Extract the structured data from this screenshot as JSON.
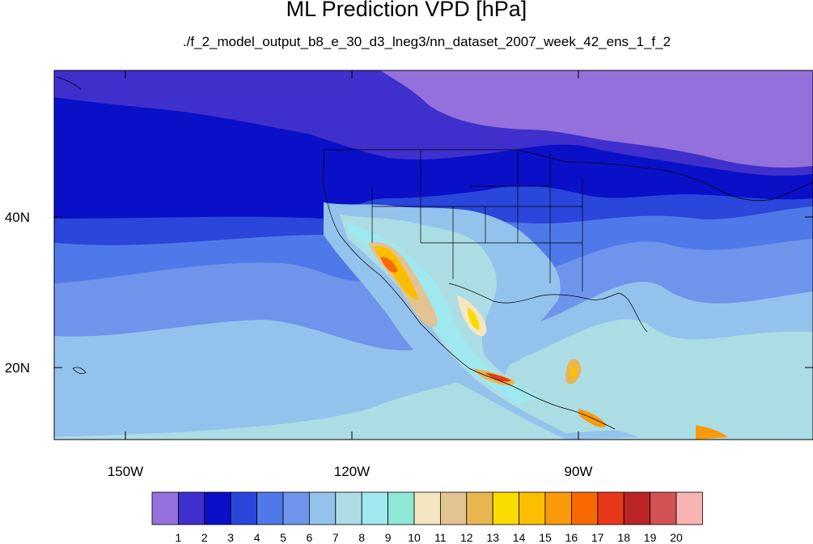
{
  "title": "ML Prediction VPD [hPa]",
  "subtitle": "./f_2_model_output_b8_e_30_d3_lneg3/nn_dataset_2007_week_42_ens_1_f_2",
  "axes": {
    "lon_labels": [
      "150W",
      "120W",
      "90W"
    ],
    "lat_labels": [
      "40N",
      "20N"
    ]
  },
  "colorbar": {
    "colors": [
      "#9370db",
      "#3f2fcc",
      "#0a10c8",
      "#2a46db",
      "#4f79e8",
      "#6e94ec",
      "#93c3ec",
      "#acdde4",
      "#a0e8ef",
      "#8fe8d6",
      "#f3e6c0",
      "#e3c392",
      "#e8b650",
      "#f9dd00",
      "#fbbf00",
      "#f99a0a",
      "#f86a00",
      "#e63818",
      "#bb2525",
      "#d05252",
      "#f9b3b3"
    ],
    "labels": [
      "1",
      "2",
      "3",
      "4",
      "5",
      "6",
      "7",
      "8",
      "9",
      "10",
      "11",
      "12",
      "13",
      "14",
      "15",
      "16",
      "17",
      "18",
      "19",
      "20"
    ]
  }
}
